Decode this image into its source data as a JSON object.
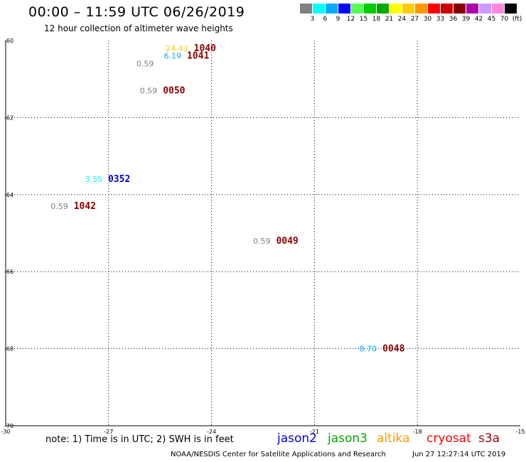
{
  "header": {
    "title": "00:00 – 11:59 UTC 06/26/2019",
    "subtitle": "12 hour collection of altimeter wave heights"
  },
  "color_scale": {
    "colors": [
      "#808080",
      "#00ffff",
      "#00aaff",
      "#0000ff",
      "#55ff55",
      "#00cc00",
      "#00aa00",
      "#ffff00",
      "#ffcc00",
      "#ff9900",
      "#ff0000",
      "#cc0000",
      "#880000",
      "#aa00aa",
      "#cc99ff",
      "#ff88dd",
      "#000000"
    ],
    "labels": [
      "3",
      "6",
      "9",
      "12",
      "15",
      "18",
      "21",
      "24",
      "27",
      "30",
      "33",
      "36",
      "39",
      "42",
      "45",
      "70",
      "(ft)"
    ]
  },
  "chart_data": {
    "type": "scatter",
    "xlim": [
      -30,
      -15
    ],
    "ylim": [
      -70,
      -60
    ],
    "x_ticks": [
      -30,
      -27,
      -24,
      -21,
      -18,
      -15
    ],
    "y_ticks": [
      -60,
      -62,
      -64,
      -66,
      -68,
      -70
    ],
    "x_tick_labels": [
      "-30",
      "-27",
      "-24",
      "-21",
      "-18",
      "-15"
    ],
    "y_tick_labels": [
      "-60",
      "-62",
      "-64",
      "-66",
      "-68",
      "-70"
    ],
    "grid": true,
    "points": [
      {
        "lon": -24.6,
        "lat": -60.2,
        "swh": "24.43",
        "time": "1040",
        "swh_color": "#ffcc00",
        "time_color": "#880000"
      },
      {
        "lon": -24.8,
        "lat": -60.4,
        "swh": "6.19",
        "time": "1041",
        "swh_color": "#00aaff",
        "time_color": "#880000"
      },
      {
        "lon": -25.6,
        "lat": -60.6,
        "swh": "0.59",
        "time": "",
        "swh_color": "#808080",
        "time_color": "#880000"
      },
      {
        "lon": -25.5,
        "lat": -61.3,
        "swh": "0.59",
        "time": "0050",
        "swh_color": "#808080",
        "time_color": "#880000"
      },
      {
        "lon": -27.1,
        "lat": -63.6,
        "swh": "3.55",
        "time": "0352",
        "swh_color": "#00ffff",
        "time_color": "#0000cc"
      },
      {
        "lon": -28.1,
        "lat": -64.3,
        "swh": "0.59",
        "time": "1042",
        "swh_color": "#808080",
        "time_color": "#880000"
      },
      {
        "lon": -22.2,
        "lat": -65.2,
        "swh": "0.59",
        "time": "0049",
        "swh_color": "#808080",
        "time_color": "#880000"
      },
      {
        "lon": -19.1,
        "lat": -68.0,
        "swh": "8.70",
        "time": "0048",
        "swh_color": "#00aaff",
        "time_color": "#880000"
      }
    ]
  },
  "note": "note: 1) Time is in UTC; 2) SWH is in feet",
  "satellites": [
    {
      "name": "jason2",
      "color": "#0000dd"
    },
    {
      "name": "jason3",
      "color": "#00aa00"
    },
    {
      "name": "altika",
      "color": "#ff9900"
    },
    {
      "name": "cryosat",
      "color": "#ff0000"
    },
    {
      "name": "s3a",
      "color": "#990000"
    }
  ],
  "footer": {
    "credit": "NOAA/NESDIS Center for Satellite Applications and Research",
    "timestamp": "Jun 27 12:27:14 UTC 2019"
  }
}
